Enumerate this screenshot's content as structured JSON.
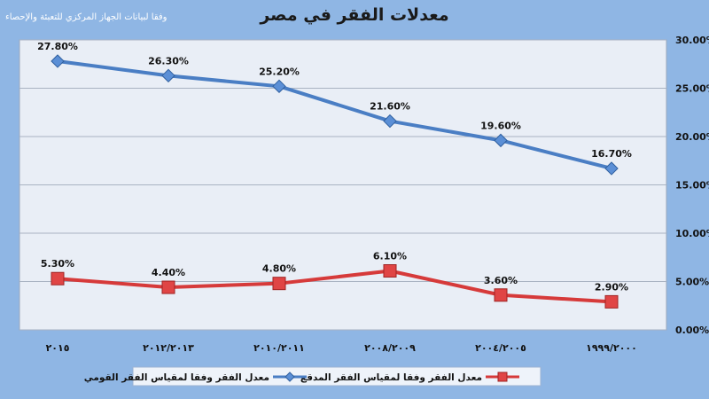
{
  "header": {
    "title": "معدلات الفقر في مصر",
    "source": "وفقا لبيانات الجهاز المركزي للتعبئة والإحصاء"
  },
  "colors": {
    "background": "#8fb6e4",
    "plot_area": "#e9eef6",
    "national_line": "#4a7ec4",
    "extreme_line": "#d63a3a"
  },
  "chart_data": {
    "type": "line",
    "title": "معدلات الفقر في مصر",
    "subtitle": "وفقا لبيانات الجهاز المركزي للتعبئة والإحصاء",
    "categories": [
      "٢٠١٥",
      "٢٠١٢/٢٠١٣",
      "٢٠١٠/٢٠١١",
      "٢٠٠٨/٢٠٠٩",
      "٢٠٠٤/٢٠٠٥",
      "١٩٩٩/٢٠٠٠"
    ],
    "series": [
      {
        "name": "معدل الفقر وفقا لمقياس الفقر القومي",
        "values": [
          27.8,
          26.3,
          25.2,
          21.6,
          19.6,
          16.7
        ],
        "labels": [
          "27.80%",
          "26.30%",
          "25.20%",
          "21.60%",
          "19.60%",
          "16.70%"
        ],
        "marker": "diamond",
        "color": "#4a7ec4"
      },
      {
        "name": "معدل الفقر وفقا لمقياس الفقر المدقع",
        "values": [
          5.3,
          4.4,
          4.8,
          6.1,
          3.6,
          2.9
        ],
        "labels": [
          "5.30%",
          "4.40%",
          "4.80%",
          "6.10%",
          "3.60%",
          "2.90%"
        ],
        "marker": "square",
        "color": "#d63a3a"
      }
    ],
    "ylim": [
      0,
      30
    ],
    "yticks": [
      "0.00%",
      "5.00%",
      "10.00%",
      "15.00%",
      "20.00%",
      "25.00%",
      "30.00%"
    ],
    "y_axis_side": "right",
    "grid": true,
    "legend": "bottom"
  }
}
